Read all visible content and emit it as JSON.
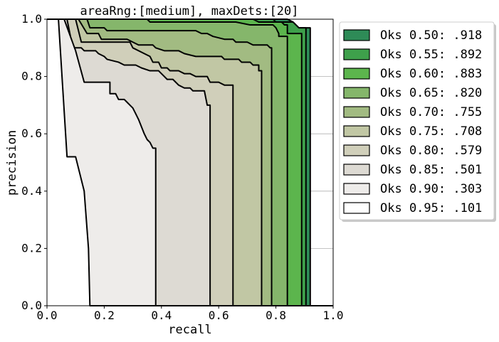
{
  "chart_data": {
    "type": "area",
    "title": "areaRng:[medium], maxDets:[20]",
    "xlabel": "recall",
    "ylabel": "precision",
    "xlim": [
      0,
      1
    ],
    "ylim": [
      0,
      1
    ],
    "x_ticks": [
      "0.0",
      "0.2",
      "0.4",
      "0.6",
      "0.8",
      "1.0"
    ],
    "y_ticks": [
      "0.0",
      "0.2",
      "0.4",
      "0.6",
      "0.8",
      "1.0"
    ],
    "grid": true,
    "legend_position": "right, outside plot",
    "series": [
      {
        "name": "Oks 0.50: .918",
        "color": "#2e8b57",
        "points": [
          [
            0.0,
            1.0
          ],
          [
            0.84,
            1.0
          ],
          [
            0.86,
            0.99
          ],
          [
            0.87,
            0.98
          ],
          [
            0.88,
            0.97
          ],
          [
            0.92,
            0.97
          ],
          [
            0.92,
            0.0
          ]
        ]
      },
      {
        "name": "Oks 0.55: .892",
        "color": "#3ea04b",
        "points": [
          [
            0.0,
            1.0
          ],
          [
            0.79,
            1.0
          ],
          [
            0.8,
            0.99
          ],
          [
            0.86,
            0.99
          ],
          [
            0.87,
            0.98
          ],
          [
            0.88,
            0.97
          ],
          [
            0.905,
            0.97
          ],
          [
            0.905,
            0.0
          ]
        ]
      },
      {
        "name": "Oks 0.60: .883",
        "color": "#5cb54d",
        "points": [
          [
            0.0,
            1.0
          ],
          [
            0.72,
            1.0
          ],
          [
            0.74,
            0.99
          ],
          [
            0.82,
            0.99
          ],
          [
            0.83,
            0.98
          ],
          [
            0.84,
            0.98
          ],
          [
            0.84,
            0.95
          ],
          [
            0.89,
            0.95
          ],
          [
            0.89,
            0.0
          ]
        ]
      },
      {
        "name": "Oks 0.65: .820",
        "color": "#85b66b",
        "points": [
          [
            0.0,
            1.0
          ],
          [
            0.35,
            1.0
          ],
          [
            0.36,
            0.99
          ],
          [
            0.66,
            0.99
          ],
          [
            0.71,
            0.98
          ],
          [
            0.79,
            0.98
          ],
          [
            0.8,
            0.97
          ],
          [
            0.81,
            0.95
          ],
          [
            0.81,
            0.94
          ],
          [
            0.84,
            0.94
          ],
          [
            0.84,
            0.0
          ]
        ]
      },
      {
        "name": "Oks 0.70: .755",
        "color": "#a2bb82",
        "points": [
          [
            0.0,
            1.0
          ],
          [
            0.14,
            1.0
          ],
          [
            0.15,
            0.97
          ],
          [
            0.2,
            0.97
          ],
          [
            0.21,
            0.96
          ],
          [
            0.52,
            0.96
          ],
          [
            0.54,
            0.95
          ],
          [
            0.56,
            0.95
          ],
          [
            0.58,
            0.94
          ],
          [
            0.62,
            0.93
          ],
          [
            0.65,
            0.93
          ],
          [
            0.66,
            0.92
          ],
          [
            0.7,
            0.92
          ],
          [
            0.72,
            0.91
          ],
          [
            0.77,
            0.91
          ],
          [
            0.78,
            0.9
          ],
          [
            0.785,
            0.9
          ],
          [
            0.785,
            0.0
          ]
        ]
      },
      {
        "name": "Oks 0.75: .708",
        "color": "#c1c7a4",
        "points": [
          [
            0.0,
            1.0
          ],
          [
            0.11,
            1.0
          ],
          [
            0.14,
            0.95
          ],
          [
            0.18,
            0.95
          ],
          [
            0.19,
            0.93
          ],
          [
            0.28,
            0.93
          ],
          [
            0.3,
            0.92
          ],
          [
            0.32,
            0.91
          ],
          [
            0.37,
            0.91
          ],
          [
            0.38,
            0.9
          ],
          [
            0.41,
            0.89
          ],
          [
            0.46,
            0.89
          ],
          [
            0.48,
            0.88
          ],
          [
            0.52,
            0.87
          ],
          [
            0.61,
            0.87
          ],
          [
            0.62,
            0.86
          ],
          [
            0.67,
            0.86
          ],
          [
            0.68,
            0.85
          ],
          [
            0.71,
            0.85
          ],
          [
            0.72,
            0.84
          ],
          [
            0.74,
            0.84
          ],
          [
            0.74,
            0.82
          ],
          [
            0.75,
            0.82
          ],
          [
            0.75,
            0.0
          ]
        ]
      },
      {
        "name": "Oks 0.80: .579",
        "color": "#d0cfba",
        "points": [
          [
            0.0,
            1.0
          ],
          [
            0.1,
            1.0
          ],
          [
            0.12,
            0.92
          ],
          [
            0.29,
            0.92
          ],
          [
            0.3,
            0.9
          ],
          [
            0.34,
            0.88
          ],
          [
            0.36,
            0.87
          ],
          [
            0.37,
            0.85
          ],
          [
            0.39,
            0.85
          ],
          [
            0.4,
            0.83
          ],
          [
            0.42,
            0.83
          ],
          [
            0.43,
            0.82
          ],
          [
            0.46,
            0.82
          ],
          [
            0.48,
            0.81
          ],
          [
            0.5,
            0.81
          ],
          [
            0.52,
            0.8
          ],
          [
            0.56,
            0.8
          ],
          [
            0.57,
            0.78
          ],
          [
            0.6,
            0.78
          ],
          [
            0.62,
            0.77
          ],
          [
            0.65,
            0.77
          ],
          [
            0.65,
            0.0
          ]
        ]
      },
      {
        "name": "Oks 0.85: .501",
        "color": "#dddad3",
        "points": [
          [
            0.0,
            1.0
          ],
          [
            0.07,
            1.0
          ],
          [
            0.09,
            0.9
          ],
          [
            0.12,
            0.9
          ],
          [
            0.13,
            0.89
          ],
          [
            0.17,
            0.89
          ],
          [
            0.18,
            0.88
          ],
          [
            0.2,
            0.87
          ],
          [
            0.21,
            0.86
          ],
          [
            0.25,
            0.85
          ],
          [
            0.27,
            0.84
          ],
          [
            0.31,
            0.84
          ],
          [
            0.33,
            0.83
          ],
          [
            0.36,
            0.82
          ],
          [
            0.39,
            0.82
          ],
          [
            0.41,
            0.8
          ],
          [
            0.42,
            0.79
          ],
          [
            0.44,
            0.79
          ],
          [
            0.46,
            0.77
          ],
          [
            0.48,
            0.76
          ],
          [
            0.5,
            0.76
          ],
          [
            0.51,
            0.75
          ],
          [
            0.55,
            0.75
          ],
          [
            0.56,
            0.7
          ],
          [
            0.57,
            0.7
          ],
          [
            0.57,
            0.0
          ]
        ]
      },
      {
        "name": "Oks 0.90: .303",
        "color": "#eeecea",
        "points": [
          [
            0.0,
            1.0
          ],
          [
            0.06,
            1.0
          ],
          [
            0.1,
            0.89
          ],
          [
            0.13,
            0.78
          ],
          [
            0.22,
            0.78
          ],
          [
            0.22,
            0.74
          ],
          [
            0.24,
            0.74
          ],
          [
            0.25,
            0.72
          ],
          [
            0.27,
            0.72
          ],
          [
            0.28,
            0.71
          ],
          [
            0.29,
            0.7
          ],
          [
            0.3,
            0.69
          ],
          [
            0.31,
            0.67
          ],
          [
            0.32,
            0.65
          ],
          [
            0.34,
            0.6
          ],
          [
            0.35,
            0.58
          ],
          [
            0.36,
            0.57
          ],
          [
            0.37,
            0.55
          ],
          [
            0.38,
            0.55
          ],
          [
            0.38,
            0.0
          ]
        ]
      },
      {
        "name": "Oks 0.95: .101",
        "color": "#ffffff",
        "points": [
          [
            0.0,
            1.0
          ],
          [
            0.04,
            1.0
          ],
          [
            0.07,
            0.52
          ],
          [
            0.1,
            0.52
          ],
          [
            0.11,
            0.48
          ],
          [
            0.13,
            0.4
          ],
          [
            0.145,
            0.2
          ],
          [
            0.15,
            0.0
          ]
        ]
      }
    ]
  }
}
